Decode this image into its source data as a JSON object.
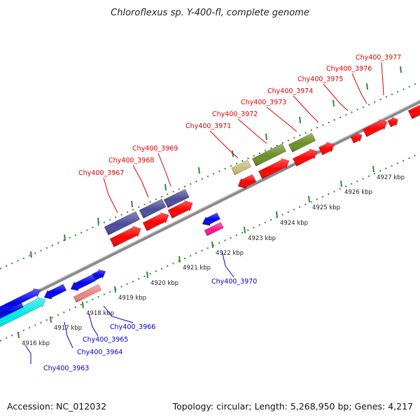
{
  "title": "Chloroflexus sp. Y-400-fl, complete genome",
  "footer": {
    "accession": "Accession: NC_012032",
    "summary": "Topology: circular; Length: 5,268,950 bp; Genes: 4,217"
  },
  "colors": {
    "backbone": "#8a8a8a",
    "tick": "#2e8b2e",
    "label_top": "#dd0000",
    "label_bottom": "#0000cc",
    "red_cds": "#ff0000",
    "blue_cds": "#0000ee",
    "purple": "#4b4b9a",
    "olive": "#6b8e23",
    "khaki": "#c8c07a",
    "cyan": "#00e5e5",
    "salmon": "#f08080",
    "magenta": "#ff1493"
  },
  "scale_ticks": [
    {
      "kbp": 4916,
      "label": "4916 kbp"
    },
    {
      "kbp": 4917,
      "label": "4917 kbp"
    },
    {
      "kbp": 4918,
      "label": "4918 kbp"
    },
    {
      "kbp": 4919,
      "label": "4919 kbp"
    },
    {
      "kbp": 4920,
      "label": "4920 kbp"
    },
    {
      "kbp": 4921,
      "label": "4921 kbp"
    },
    {
      "kbp": 4922,
      "label": "4922 kbp"
    },
    {
      "kbp": 4923,
      "label": "4923 kbp"
    },
    {
      "kbp": 4924,
      "label": "4924 kbp"
    },
    {
      "kbp": 4925,
      "label": "4925 kbp"
    },
    {
      "kbp": 4926,
      "label": "4926 kbp"
    },
    {
      "kbp": 4927,
      "label": "4927 kbp"
    }
  ],
  "gene_labels": [
    {
      "name": "Chy400_3963",
      "strand": "bottom"
    },
    {
      "name": "Chy400_3964",
      "strand": "bottom"
    },
    {
      "name": "Chy400_3965",
      "strand": "bottom"
    },
    {
      "name": "Chy400_3966",
      "strand": "bottom"
    },
    {
      "name": "Chy400_3967",
      "strand": "top"
    },
    {
      "name": "Chy400_3968",
      "strand": "top"
    },
    {
      "name": "Chy400_3969",
      "strand": "top"
    },
    {
      "name": "Chy400_3970",
      "strand": "bottom"
    },
    {
      "name": "Chy400_3971",
      "strand": "top"
    },
    {
      "name": "Chy400_3972",
      "strand": "top"
    },
    {
      "name": "Chy400_3973",
      "strand": "top"
    },
    {
      "name": "Chy400_3974",
      "strand": "top"
    },
    {
      "name": "Chy400_3975",
      "strand": "top"
    },
    {
      "name": "Chy400_3976",
      "strand": "top"
    },
    {
      "name": "Chy400_3977",
      "strand": "top"
    }
  ]
}
